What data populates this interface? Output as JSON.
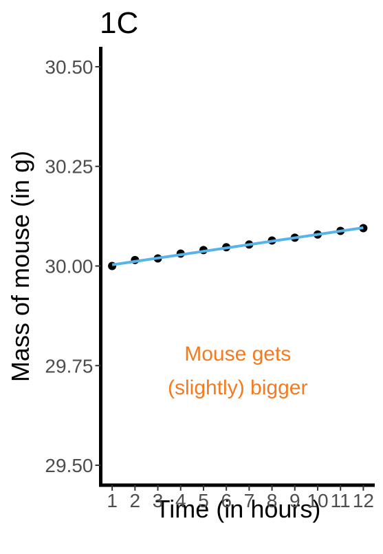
{
  "chart_data": {
    "type": "line",
    "title": "1C",
    "xlabel": "Time (in hours)",
    "ylabel": "Mass of mouse (in g)",
    "x": [
      1,
      2,
      3,
      4,
      5,
      6,
      7,
      8,
      9,
      10,
      11,
      12
    ],
    "series": [
      {
        "values": [
          30.0,
          30.015,
          30.019,
          30.031,
          30.04,
          30.047,
          30.054,
          30.064,
          30.071,
          30.079,
          30.088,
          30.095
        ],
        "color": "#000000"
      }
    ],
    "trend_line": {
      "x": [
        1,
        12
      ],
      "y": [
        30.003,
        30.096
      ],
      "color": "#56B4E9"
    },
    "xlim": [
      0.5,
      12.5
    ],
    "ylim": [
      29.45,
      30.55
    ],
    "x_ticks": [
      "1",
      "2",
      "3",
      "4",
      "5",
      "6",
      "7",
      "8",
      "9",
      "10",
      "11",
      "12"
    ],
    "y_ticks": [
      "29.50",
      "29.75",
      "30.00",
      "30.25",
      "30.50"
    ],
    "annotation": {
      "lines": [
        "Mouse gets",
        "(slightly) bigger"
      ],
      "color": "#F47A20",
      "x": 6.5,
      "y": [
        29.78,
        29.695
      ]
    },
    "grid": false,
    "legend": "none"
  }
}
